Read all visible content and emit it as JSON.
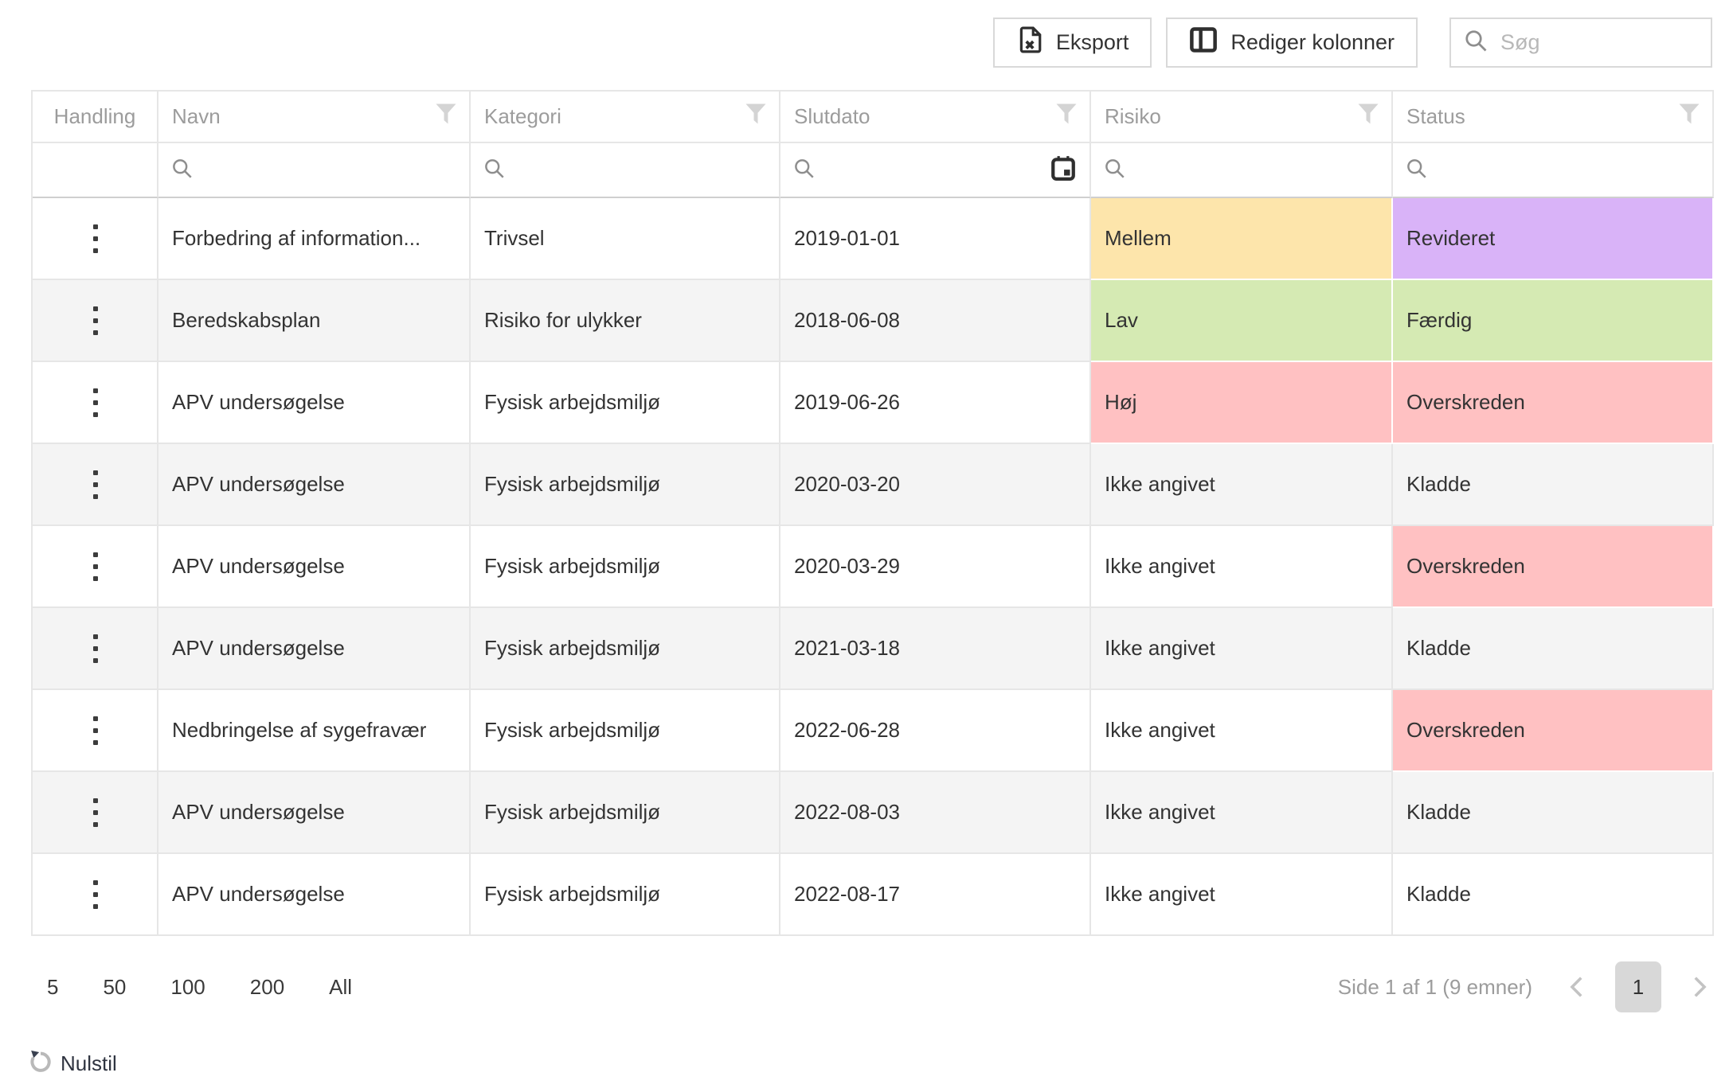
{
  "toolbar": {
    "export_label": "Eksport",
    "edit_columns_label": "Rediger kolonner",
    "search_placeholder": "Søg"
  },
  "table": {
    "columns": [
      {
        "label": "Handling"
      },
      {
        "label": "Navn"
      },
      {
        "label": "Kategori"
      },
      {
        "label": "Slutdato"
      },
      {
        "label": "Risiko"
      },
      {
        "label": "Status"
      }
    ],
    "rows": [
      {
        "navn": "Forbedring af information...",
        "kategori": "Trivsel",
        "slutdato": "2019-01-01",
        "risiko": {
          "text": "Mellem",
          "color": "yellow"
        },
        "status": {
          "text": "Revideret",
          "color": "purple"
        }
      },
      {
        "navn": "Beredskabsplan",
        "kategori": "Risiko for ulykker",
        "slutdato": "2018-06-08",
        "risiko": {
          "text": "Lav",
          "color": "green"
        },
        "status": {
          "text": "Færdig",
          "color": "green"
        }
      },
      {
        "navn": "APV undersøgelse",
        "kategori": "Fysisk arbejdsmiljø",
        "slutdato": "2019-06-26",
        "risiko": {
          "text": "Høj",
          "color": "red"
        },
        "status": {
          "text": "Overskreden",
          "color": "red"
        }
      },
      {
        "navn": "APV undersøgelse",
        "kategori": "Fysisk arbejdsmiljø",
        "slutdato": "2020-03-20",
        "risiko": {
          "text": "Ikke angivet"
        },
        "status": {
          "text": "Kladde"
        }
      },
      {
        "navn": "APV undersøgelse",
        "kategori": "Fysisk arbejdsmiljø",
        "slutdato": "2020-03-29",
        "risiko": {
          "text": "Ikke angivet"
        },
        "status": {
          "text": "Overskreden",
          "color": "red"
        }
      },
      {
        "navn": "APV undersøgelse",
        "kategori": "Fysisk arbejdsmiljø",
        "slutdato": "2021-03-18",
        "risiko": {
          "text": "Ikke angivet"
        },
        "status": {
          "text": "Kladde"
        }
      },
      {
        "navn": "Nedbringelse af sygefravær",
        "kategori": "Fysisk arbejdsmiljø",
        "slutdato": "2022-06-28",
        "risiko": {
          "text": "Ikke angivet"
        },
        "status": {
          "text": "Overskreden",
          "color": "red"
        }
      },
      {
        "navn": "APV undersøgelse",
        "kategori": "Fysisk arbejdsmiljø",
        "slutdato": "2022-08-03",
        "risiko": {
          "text": "Ikke angivet"
        },
        "status": {
          "text": "Kladde"
        }
      },
      {
        "navn": "APV undersøgelse",
        "kategori": "Fysisk arbejdsmiljø",
        "slutdato": "2022-08-17",
        "risiko": {
          "text": "Ikke angivet"
        },
        "status": {
          "text": "Kladde"
        }
      }
    ]
  },
  "colors": {
    "yellow": "#fde5ab",
    "green": "#d5eab3",
    "red": "#ffc1c2",
    "purple": "#d9b3f8"
  },
  "pagination": {
    "page_sizes": [
      "5",
      "50",
      "100",
      "200",
      "All"
    ],
    "summary": "Side 1 af 1 (9 emner)",
    "current_page": "1"
  },
  "footer": {
    "reset_label": "Nulstil"
  }
}
